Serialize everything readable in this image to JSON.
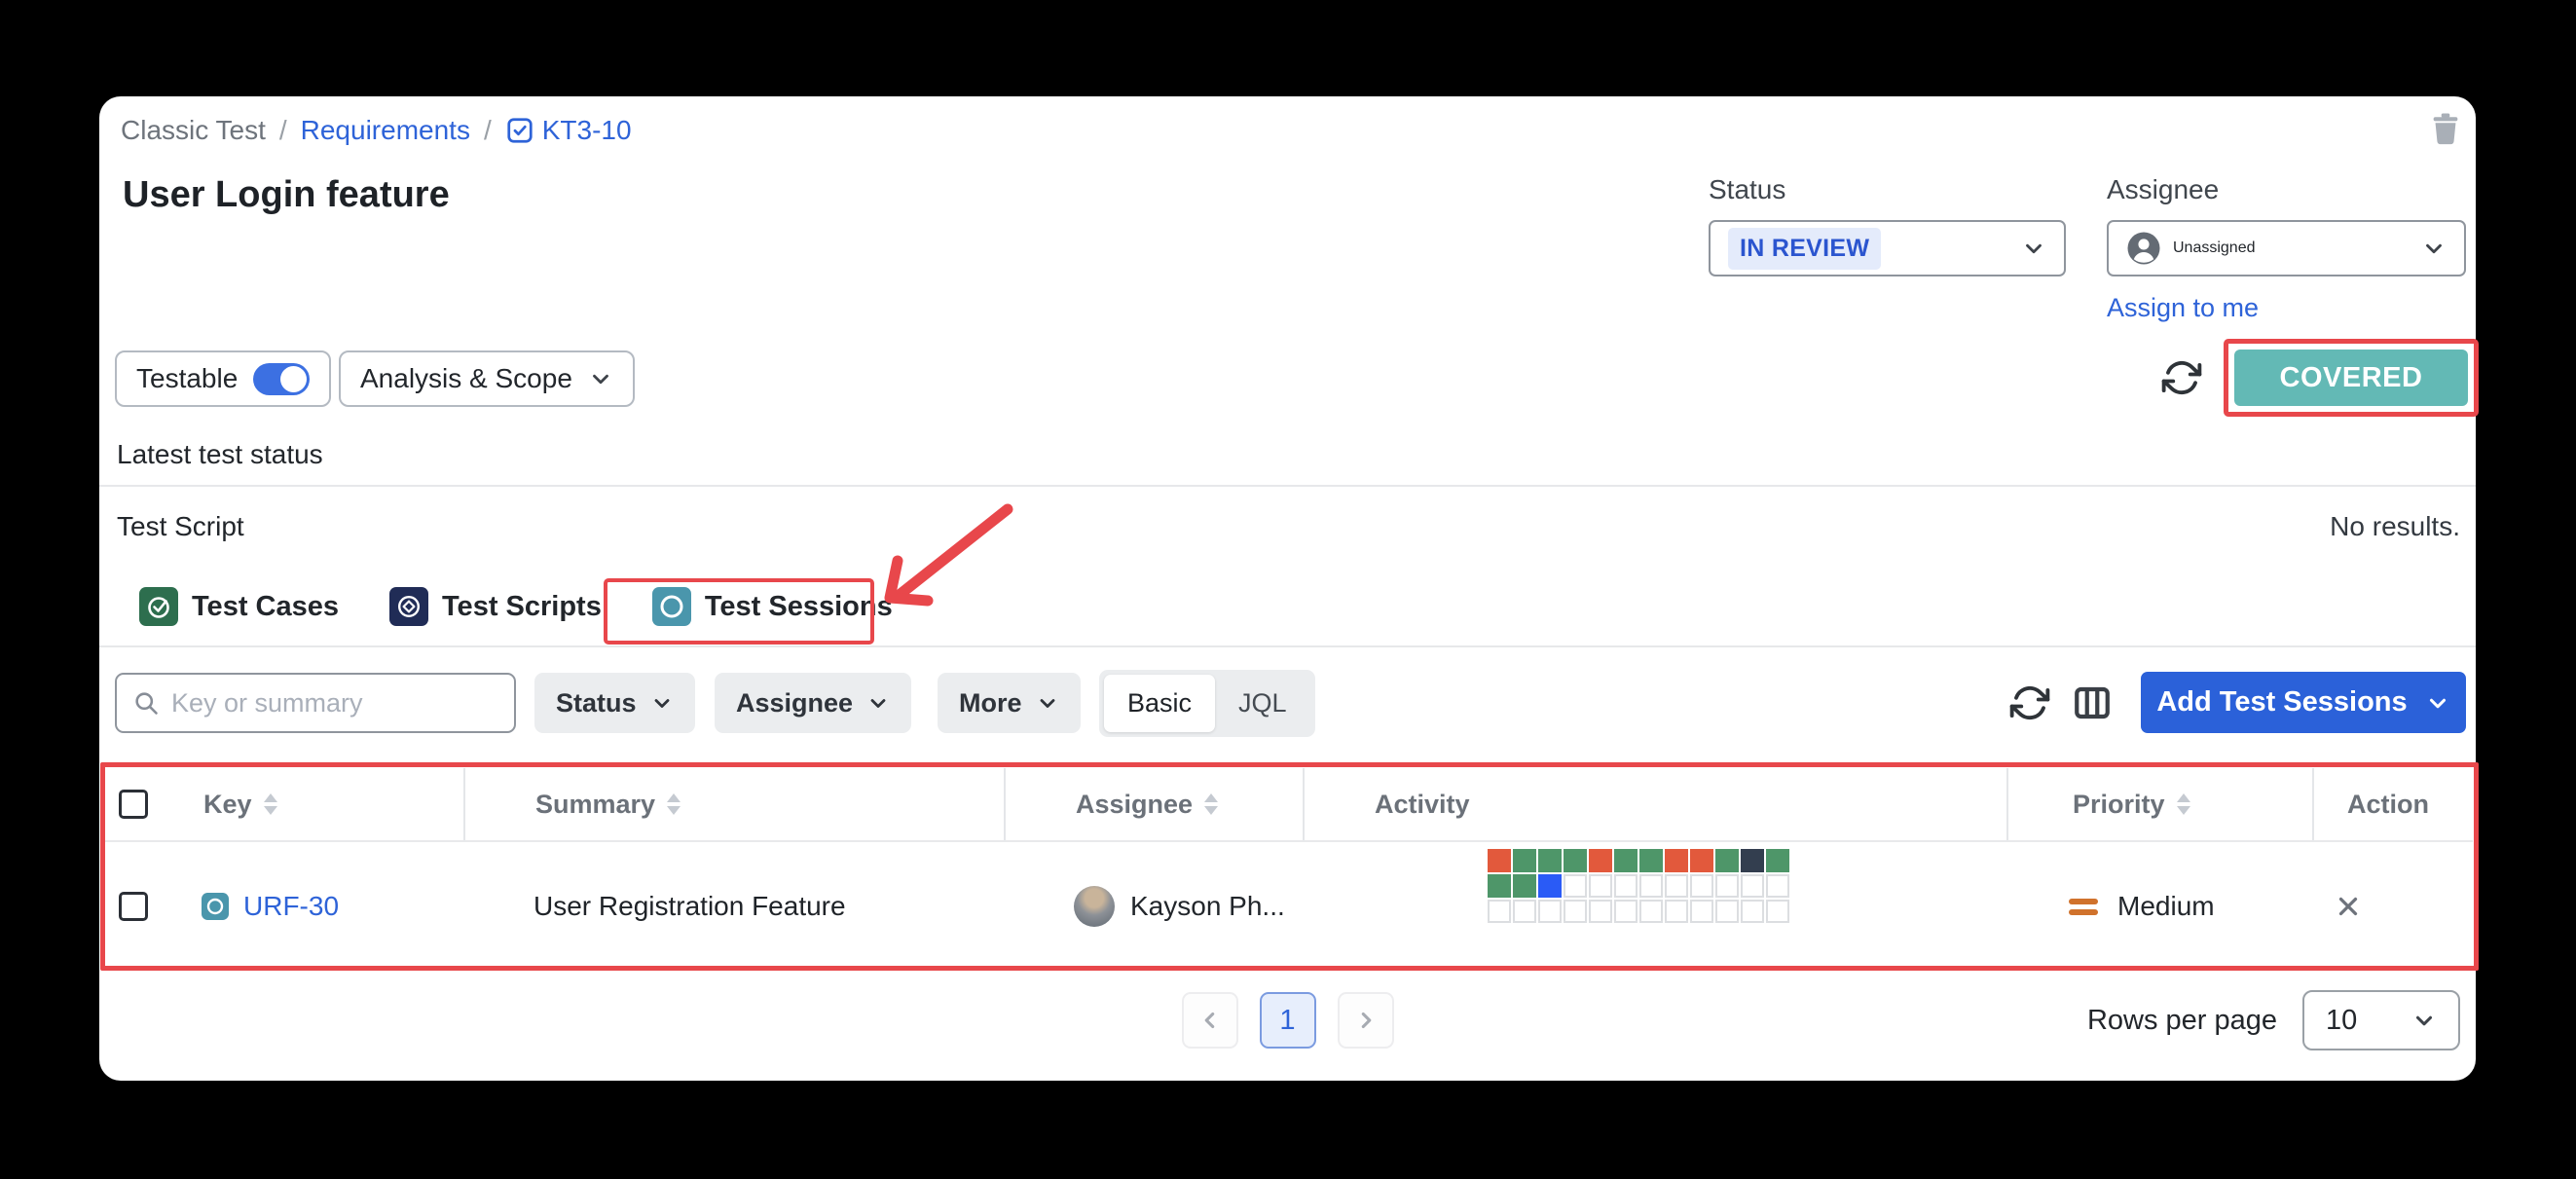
{
  "breadcrumb": {
    "items": [
      "Classic Test",
      "Requirements",
      "KT3-10"
    ],
    "separator": "/"
  },
  "page": {
    "title": "User Login feature"
  },
  "details": {
    "status_label": "Status",
    "status_value": "IN REVIEW",
    "assignee_label": "Assignee",
    "assignee_value": "Unassigned",
    "assign_to_me": "Assign to me"
  },
  "toolbar": {
    "testable_label": "Testable",
    "analysis_scope_label": "Analysis & Scope",
    "coverage_status": "COVERED",
    "latest_test_status": "Latest test status"
  },
  "section": {
    "test_script_label": "Test Script",
    "no_results": "No results."
  },
  "tabs": [
    {
      "label": "Test Cases"
    },
    {
      "label": "Test Scripts"
    },
    {
      "label": "Test Sessions"
    }
  ],
  "filters": {
    "search_placeholder": "Key or summary",
    "status": "Status",
    "assignee": "Assignee",
    "more": "More",
    "mode_basic": "Basic",
    "mode_jql": "JQL",
    "add_button": "Add Test Sessions"
  },
  "table": {
    "columns": [
      "Key",
      "Summary",
      "Assignee",
      "Activity",
      "Priority",
      "Action"
    ],
    "rows": [
      {
        "key": "URF-30",
        "summary": "User Registration Feature",
        "assignee": "Kayson Ph...",
        "priority": "Medium",
        "activity": [
          [
            "orange",
            "green",
            "green",
            "green",
            "orange",
            "green",
            "green",
            "orange",
            "orange",
            "green",
            "dark",
            "green"
          ],
          [
            "green",
            "green",
            "blue",
            "empty",
            "empty",
            "empty",
            "empty",
            "empty",
            "empty",
            "empty",
            "empty",
            "empty"
          ],
          [
            "empty",
            "empty",
            "empty",
            "empty",
            "empty",
            "empty",
            "empty",
            "empty",
            "empty",
            "empty",
            "empty",
            "empty"
          ]
        ]
      }
    ]
  },
  "pagination": {
    "current_page": "1",
    "rows_per_page_label": "Rows per page",
    "rows_per_page_value": "10"
  },
  "colors": {
    "accent_blue": "#2e63d8",
    "toggle_blue": "#3c70e2",
    "coverage_teal": "#63b9b5",
    "annotation_red": "#e8474b",
    "status_badge_bg": "#e4ebfb",
    "status_badge_text": "#2b55cf",
    "tab_green": "#2d6e4e",
    "tab_navy": "#202c56",
    "tab_teal": "#4a96ac",
    "priority_orange": "#d0722c",
    "activity": {
      "orange": "#e2593c",
      "green": "#4e9669",
      "blue": "#2a5bf6",
      "dark": "#333e4f"
    }
  }
}
